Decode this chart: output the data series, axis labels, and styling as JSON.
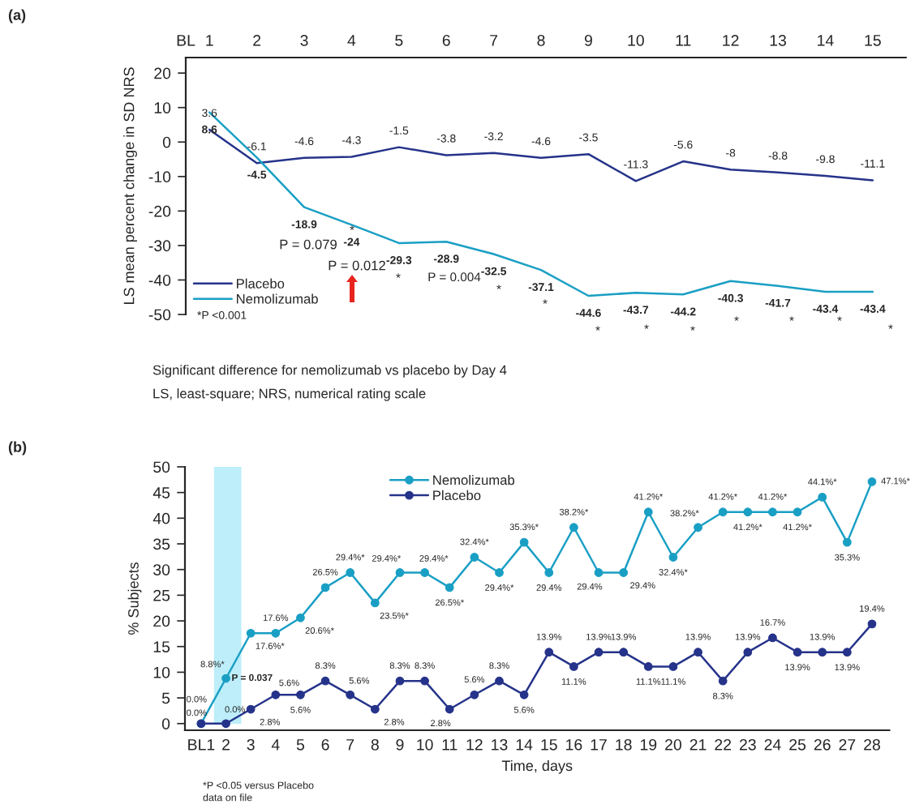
{
  "chart_data": [
    {
      "type": "line",
      "ylabel": "LS mean percent change in SD NRS",
      "x": [
        1,
        2,
        3,
        4,
        5,
        6,
        7,
        8,
        9,
        10,
        11,
        12,
        13,
        14,
        15
      ],
      "xlim": [
        0.5,
        15.7
      ],
      "xticks": [
        {
          "value": 0.5,
          "label": "BL"
        },
        1,
        2,
        3,
        4,
        5,
        6,
        7,
        8,
        9,
        10,
        11,
        12,
        13,
        14,
        15
      ],
      "ylim": [
        -50,
        24.5
      ],
      "yticks": [
        {
          "value": 20,
          "label": "20"
        },
        {
          "value": 10,
          "label": "10"
        },
        {
          "value": 0,
          "label": "0"
        },
        {
          "value": -10,
          "label": "-10"
        },
        {
          "value": -20,
          "label": "-20"
        },
        {
          "value": -30,
          "label": "-30"
        },
        {
          "value": -40,
          "label": "-40"
        },
        {
          "value": -50,
          "label": "-50"
        }
      ],
      "series": [
        {
          "name": "Placebo",
          "color": "#25338a",
          "values": [
            3.6,
            -6.1,
            -4.6,
            -4.3,
            -1.5,
            -3.8,
            -3.2,
            -4.6,
            -3.5,
            -11.3,
            -5.6,
            -8,
            -8.8,
            -9.8,
            -11.1
          ]
        },
        {
          "name": "Nemolizumab",
          "color": "#1a9fc4",
          "values": [
            8.6,
            -4.5,
            -18.9,
            -24,
            -29.3,
            -28.9,
            -32.5,
            -37.1,
            -44.6,
            -43.7,
            -44.2,
            -40.3,
            -41.7,
            -43.4,
            -43.4
          ]
        }
      ],
      "data_labels": true,
      "legend": "bottom left",
      "grid": false,
      "marker": "none",
      "line_style": "solid",
      "annotations": [
        "(a)",
        "*P <0.001",
        "Significant difference for nemolizumab vs placebo by Day 4",
        "LS, least-square; NRS, numerical rating scale",
        "P = 0.079",
        "*",
        "P = 0.012",
        "*",
        "P = 0.004",
        "*",
        "*",
        "*",
        "*",
        "*",
        "*",
        "*",
        "*",
        "*"
      ]
    },
    {
      "type": "line",
      "xlabel": "Time, days",
      "ylabel": "% Subjects",
      "categories": [
        "BL1",
        "2",
        "3",
        "4",
        "5",
        "6",
        "7",
        "8",
        "9",
        "10",
        "11",
        "12",
        "13",
        "14",
        "15",
        "16",
        "17",
        "18",
        "19",
        "20",
        "21",
        "22",
        "23",
        "24",
        "25",
        "26",
        "27",
        "28"
      ],
      "ylim": [
        -1.3,
        50
      ],
      "yticks": [
        0,
        5,
        10,
        15,
        20,
        25,
        30,
        35,
        40,
        45,
        50
      ],
      "series": [
        {
          "name": "Nemolizumab",
          "color": "#1a9fc4",
          "values": [
            0.0,
            8.8,
            17.6,
            17.6,
            20.6,
            26.5,
            29.4,
            23.5,
            29.4,
            29.4,
            26.5,
            32.4,
            29.4,
            35.3,
            29.4,
            38.2,
            29.4,
            29.4,
            41.2,
            32.4,
            38.2,
            41.2,
            41.2,
            41.2,
            41.2,
            44.1,
            35.3,
            47.1
          ],
          "value_labels": [
            "0.0%",
            "8.8%*",
            "17.6%*",
            "17.6%",
            "20.6%*",
            "26.5%",
            "29.4%*",
            "23.5%*",
            "29.4%*",
            "29.4%*",
            "26.5%*",
            "32.4%*",
            "29.4%*",
            "35.3%*",
            "29.4%",
            "38.2%*",
            "29.4%",
            "29.4%",
            "41.2%*",
            "32.4%*",
            "38.2%*",
            "41.2%*",
            "41.2%*",
            "41.2%*",
            "41.2%*",
            "44.1%*",
            "35.3%",
            "47.1%*"
          ]
        },
        {
          "name": "Placebo",
          "color": "#25338a",
          "values": [
            0.0,
            0.0,
            2.8,
            5.6,
            5.6,
            8.3,
            5.6,
            2.8,
            8.3,
            8.3,
            2.8,
            5.6,
            8.3,
            5.6,
            13.9,
            11.1,
            13.9,
            13.9,
            11.1,
            11.1,
            13.9,
            8.3,
            13.9,
            16.7,
            13.9,
            13.9,
            13.9,
            19.4
          ],
          "value_labels": [
            "0.0%",
            "0.0%",
            "2.8%",
            "5.6%",
            "5.6%",
            "8.3%",
            "5.6%",
            "2.8%",
            "8.3%",
            "8.3%",
            "2.8%",
            "5.6%",
            "8.3%",
            "5.6%",
            "13.9%",
            "11.1%",
            "13.9%",
            "13.9%",
            "11.1%",
            "11.1%",
            "13.9%",
            "8.3%",
            "13.9%",
            "16.7%",
            "13.9%",
            "13.9%",
            "13.9%",
            "19.4%"
          ]
        }
      ],
      "bands": [
        {
          "axis": "x",
          "from": "2",
          "to": "2",
          "color": "#bdeefa"
        }
      ],
      "legend": "top left",
      "grid": false,
      "marker": "circle",
      "line_style": "solid",
      "annotations": [
        "(b)",
        "*P <0.05 versus Placebo",
        "data on file",
        {
          "text": "P = 0.037",
          "x": "2",
          "y": 8.8
        }
      ]
    }
  ]
}
